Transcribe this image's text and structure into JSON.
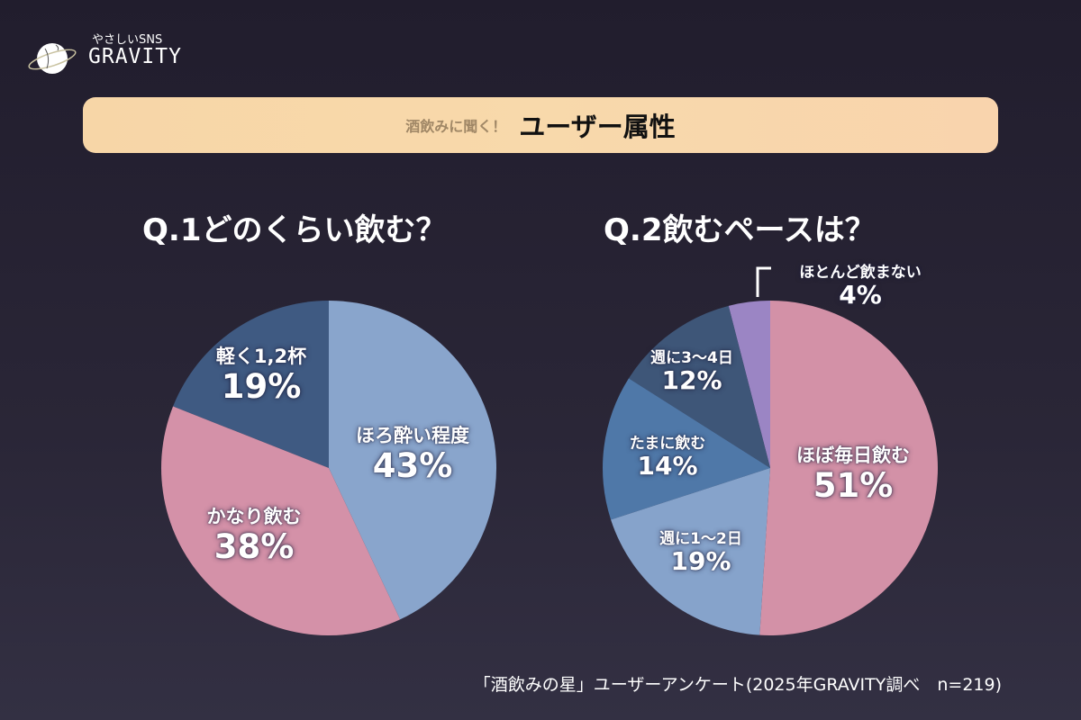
{
  "logo": {
    "subtitle": "やさしいSNS",
    "name": "GRAVITY"
  },
  "banner": {
    "subtitle": "酒飲みに聞く！",
    "title": "ユーザー属性"
  },
  "chart_data": [
    {
      "type": "pie",
      "title": "Q.1どのくらい飲む？",
      "slices": [
        {
          "label": "ほろ酔い程度",
          "value": 43,
          "pct": "43%",
          "color": "#89a5cc"
        },
        {
          "label": "かなり飲む",
          "value": 38,
          "pct": "38%",
          "color": "#d491a8"
        },
        {
          "label": "軽く1,2杯",
          "value": 19,
          "pct": "19%",
          "color": "#3f5a82"
        }
      ]
    },
    {
      "type": "pie",
      "title": "Q.2飲むペースは？",
      "slices": [
        {
          "label": "ほぼ毎日飲む",
          "value": 51,
          "pct": "51%",
          "color": "#d391a7"
        },
        {
          "label": "週に1〜2日",
          "value": 19,
          "pct": "19%",
          "color": "#86a3cb"
        },
        {
          "label": "たまに飲む",
          "value": 14,
          "pct": "14%",
          "color": "#4f78a8"
        },
        {
          "label": "週に3〜4日",
          "value": 12,
          "pct": "12%",
          "color": "#3e5678"
        },
        {
          "label": "ほとんど飲まない",
          "value": 4,
          "pct": "4%",
          "color": "#9b85c4"
        }
      ]
    }
  ],
  "footer": "「酒飲みの星」ユーザーアンケート(2025年GRAVITY調べ　n=219)"
}
